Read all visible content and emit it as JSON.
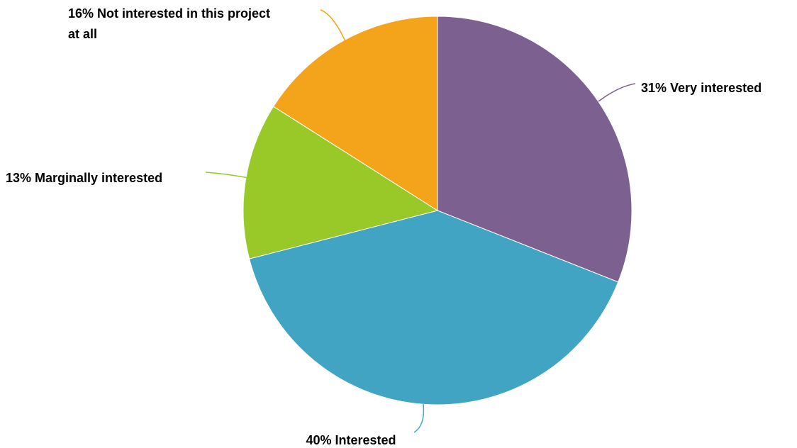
{
  "chart_data": {
    "type": "pie",
    "title": "",
    "start_angle_deg": 0,
    "direction": "clockwise",
    "slices": [
      {
        "label": "Very interested",
        "value": 31,
        "display": "31% Very interested",
        "color": "#7c6090"
      },
      {
        "label": "Interested",
        "value": 40,
        "display": "40% Interested",
        "color": "#40a4c2"
      },
      {
        "label": "Marginally interested",
        "value": 13,
        "display": "13% Marginally interested",
        "color": "#98c929"
      },
      {
        "label": "Not interested in this project at all",
        "value": 16,
        "display": "16% Not interested in this project at all",
        "color": "#f4a41a"
      }
    ],
    "legend": "none"
  }
}
